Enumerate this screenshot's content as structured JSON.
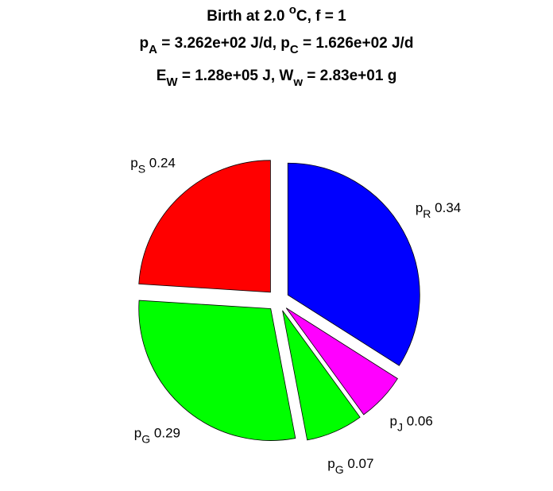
{
  "chart_data": {
    "type": "pie",
    "title": [
      [
        {
          "text": "Birth at 2.0 "
        },
        {
          "text": "o",
          "script": "sup"
        },
        {
          "text": "C, f = 1"
        }
      ],
      [
        {
          "text": "p"
        },
        {
          "text": "A",
          "script": "sub"
        },
        {
          "text": " = 3.262e+02 J/d, p"
        },
        {
          "text": "C",
          "script": "sub"
        },
        {
          "text": " = 1.626e+02 J/d"
        }
      ],
      [
        {
          "text": "E"
        },
        {
          "text": "W",
          "script": "sub"
        },
        {
          "text": " = 1.28e+05 J, W"
        },
        {
          "text": "w",
          "script": "sub"
        },
        {
          "text": " = 2.83e+01 g"
        }
      ]
    ],
    "categories": [
      {
        "main": "p",
        "sub": "S"
      },
      {
        "main": "p",
        "sub": "G"
      },
      {
        "main": "p",
        "sub": "G"
      },
      {
        "main": "p",
        "sub": "J"
      },
      {
        "main": "p",
        "sub": "R"
      }
    ],
    "values": [
      0.24,
      0.29,
      0.07,
      0.06,
      0.34
    ],
    "colors": [
      "#ff0000",
      "#00ff00",
      "#00ff00",
      "#ff00ff",
      "#0000ff"
    ],
    "exploded": true
  }
}
